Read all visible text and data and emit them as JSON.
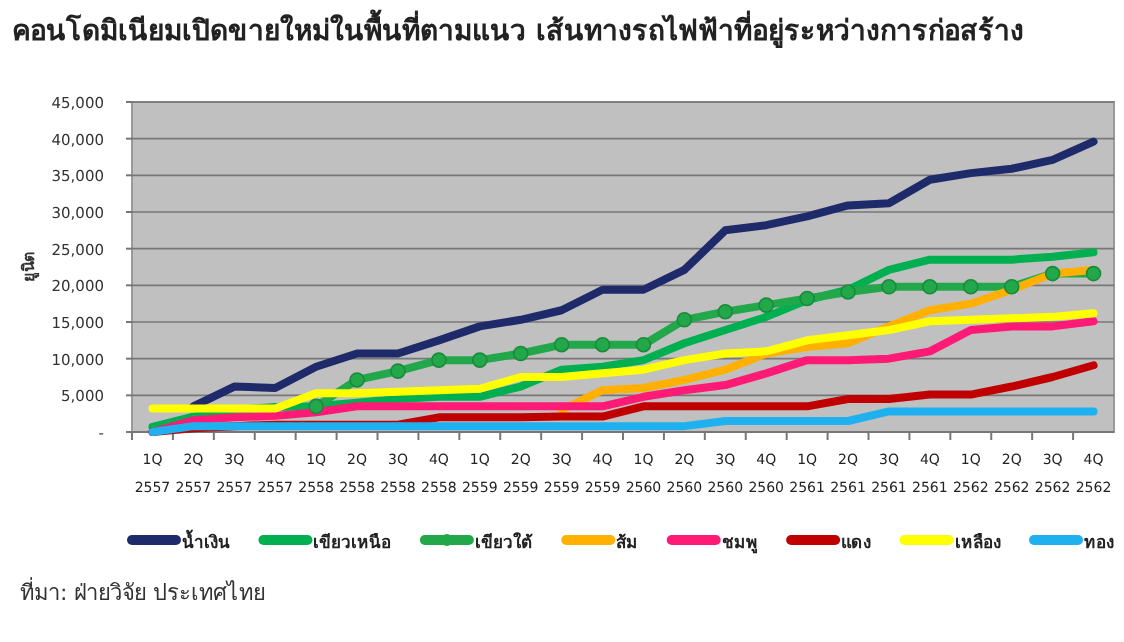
{
  "chart_data": {
    "type": "line",
    "title": "คอนโดมิเนียมเปิดขายใหม่ในพื้นที่ตามแนว เส้นทางรถไฟฟ้าที่อยู่ระหว่างการก่อสร้าง",
    "ylabel": "ยูนิต",
    "categories": [
      "1Q 2557",
      "2Q 2557",
      "3Q 2557",
      "4Q 2557",
      "1Q 2558",
      "2Q 2558",
      "3Q 2558",
      "4Q 2558",
      "1Q 2559",
      "2Q 2559",
      "3Q 2559",
      "4Q 2559",
      "1Q 2560",
      "2Q 2560",
      "3Q 2560",
      "4Q 2560",
      "1Q 2561",
      "2Q 2561",
      "3Q 2561",
      "4Q 2561",
      "1Q 2562",
      "2Q 2562",
      "3Q 2562",
      "4Q 2562"
    ],
    "ylim": [
      0,
      45000
    ],
    "yticks": [
      {
        "value": 0,
        "label": "-"
      },
      {
        "value": 5000,
        "label": "5,000"
      },
      {
        "value": 10000,
        "label": "10,000"
      },
      {
        "value": 15000,
        "label": "15,000"
      },
      {
        "value": 20000,
        "label": "20,000"
      },
      {
        "value": 25000,
        "label": "25,000"
      },
      {
        "value": 30000,
        "label": "30,000"
      },
      {
        "value": 35000,
        "label": "35,000"
      },
      {
        "value": 40000,
        "label": "40,000"
      },
      {
        "value": 45000,
        "label": "45,000"
      }
    ],
    "grid": "y",
    "legend": "bottom",
    "marker": "none",
    "line_style": "solid",
    "series": [
      {
        "name": "น้ำเงิน",
        "color": "#1f2a6b",
        "values": [
          null,
          3500,
          6200,
          6000,
          8900,
          10700,
          10700,
          12500,
          14400,
          15300,
          16600,
          19400,
          19400,
          22100,
          27500,
          28200,
          29400,
          30900,
          31200,
          34400,
          35300,
          35900,
          37100,
          39600
        ]
      },
      {
        "name": "เขียวเหนือ",
        "color": "#00b050",
        "values": [
          700,
          2100,
          3000,
          3400,
          3500,
          4000,
          4500,
          4800,
          4800,
          6200,
          8500,
          8900,
          9800,
          12100,
          13900,
          15700,
          18000,
          19400,
          22100,
          23500,
          23500,
          23500,
          23900,
          24500
        ]
      },
      {
        "name": "เขียวใต้",
        "color": "#22a84a",
        "marker": "circle",
        "values": [
          null,
          null,
          null,
          null,
          3500,
          7100,
          8300,
          9800,
          9800,
          10700,
          11900,
          11900,
          11900,
          15300,
          16400,
          17300,
          18200,
          19100,
          19800,
          19800,
          19800,
          19800,
          21600,
          21600
        ]
      },
      {
        "name": "ส้ม",
        "color": "#ffb000",
        "values": [
          null,
          null,
          null,
          null,
          null,
          null,
          null,
          null,
          null,
          null,
          3000,
          5700,
          6000,
          7100,
          8500,
          10700,
          11600,
          12100,
          14400,
          16600,
          17500,
          19400,
          21600,
          22100
        ]
      },
      {
        "name": "ชมพู",
        "color": "#ff1a75",
        "values": [
          0,
          1600,
          2000,
          2200,
          2700,
          3500,
          3500,
          3500,
          3500,
          3500,
          3500,
          3500,
          4800,
          5700,
          6400,
          8000,
          9800,
          9800,
          10000,
          11000,
          13900,
          14400,
          14400,
          15100
        ]
      },
      {
        "name": "แดง",
        "color": "#c00000",
        "values": [
          0,
          500,
          800,
          1000,
          1000,
          1000,
          1000,
          2000,
          2000,
          2000,
          2100,
          2100,
          3500,
          3500,
          3500,
          3500,
          3500,
          4500,
          4500,
          5100,
          5100,
          6200,
          7500,
          9100
        ]
      },
      {
        "name": "เหลือง",
        "color": "#ffff00",
        "values": [
          3200,
          3200,
          3200,
          3200,
          5300,
          5300,
          5500,
          5700,
          5900,
          7500,
          7500,
          8000,
          8500,
          9800,
          10700,
          11000,
          12500,
          13200,
          13900,
          15100,
          15300,
          15500,
          15700,
          16200
        ]
      },
      {
        "name": "ทอง",
        "color": "#1fb0f0",
        "values": [
          0,
          800,
          800,
          800,
          800,
          800,
          800,
          800,
          800,
          800,
          800,
          800,
          800,
          800,
          1500,
          1500,
          1500,
          1500,
          2800,
          2800,
          2800,
          2800,
          2800,
          2800
        ]
      }
    ],
    "annotations": [
      "ที่มา: ฝ่ายวิจัย ประเทศไทย"
    ]
  }
}
